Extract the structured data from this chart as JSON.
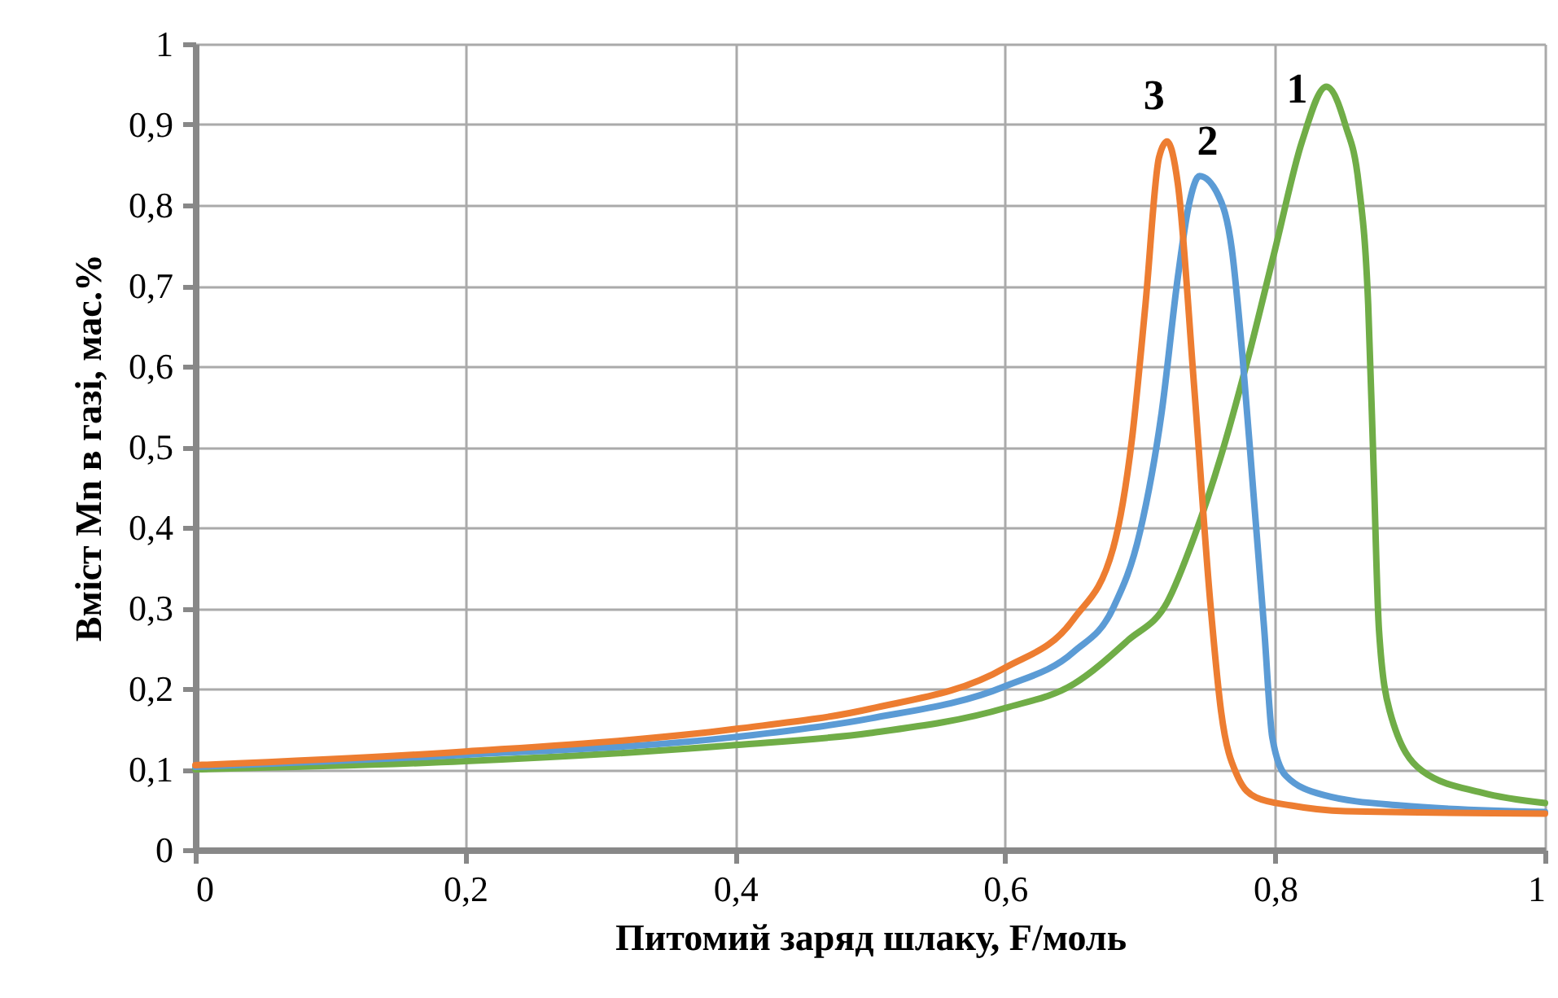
{
  "chart_data": {
    "type": "line",
    "xlabel": "Питомий заряд шлаку, F/моль",
    "ylabel": "Вміст Mn в газі, мас.%",
    "xlim": [
      0,
      1
    ],
    "ylim": [
      0,
      1
    ],
    "xticks": [
      0,
      {
        "value": 0.2,
        "label": "0,2"
      },
      {
        "value": 0.4,
        "label": "0,4"
      },
      {
        "value": 0.6,
        "label": "0,6"
      },
      {
        "value": 0.8,
        "label": "0,8"
      },
      1
    ],
    "yticks": [
      0,
      {
        "value": 0.1,
        "label": "0,1"
      },
      {
        "value": 0.2,
        "label": "0,2"
      },
      {
        "value": 0.3,
        "label": "0,3"
      },
      {
        "value": 0.4,
        "label": "0,4"
      },
      {
        "value": 0.5,
        "label": "0,5"
      },
      {
        "value": 0.6,
        "label": "0,6"
      },
      {
        "value": 0.7,
        "label": "0,7"
      },
      {
        "value": 0.8,
        "label": "0,8"
      },
      {
        "value": 0.9,
        "label": "0,9"
      },
      1
    ],
    "grid": true,
    "legend": false,
    "marker": "none",
    "line_style": "solid",
    "series": [
      {
        "name": "1",
        "color": "#70ad47",
        "x": [
          0,
          0.2,
          0.4,
          0.5,
          0.6,
          0.651,
          0.691,
          0.72,
          0.74,
          0.76,
          0.78,
          0.8,
          0.82,
          0.838,
          0.852,
          0.862,
          0.869,
          0.873,
          0.877,
          0.885,
          0.909,
          0.953,
          1
        ],
        "values": [
          0.1,
          0.11,
          0.13,
          0.145,
          0.176,
          0.206,
          0.26,
          0.307,
          0.388,
          0.489,
          0.61,
          0.745,
          0.879,
          0.947,
          0.9,
          0.826,
          0.677,
          0.475,
          0.273,
          0.172,
          0.098,
          0.071,
          0.058
        ]
      },
      {
        "name": "2",
        "color": "#5b9bd5",
        "x": [
          0,
          0.2,
          0.4,
          0.5,
          0.6,
          0.651,
          0.68,
          0.7,
          0.716,
          0.728,
          0.736,
          0.744,
          0.758,
          0.768,
          0.776,
          0.784,
          0.792,
          0.798,
          0.808,
          0.836,
          0.893,
          1
        ],
        "values": [
          0.103,
          0.118,
          0.14,
          0.163,
          0.203,
          0.246,
          0.3,
          0.395,
          0.543,
          0.711,
          0.799,
          0.836,
          0.812,
          0.745,
          0.61,
          0.442,
          0.273,
          0.139,
          0.092,
          0.068,
          0.055,
          0.047
        ]
      },
      {
        "name": "3",
        "color": "#ed7d31",
        "x": [
          0,
          0.2,
          0.4,
          0.5,
          0.6,
          0.651,
          0.68,
          0.694,
          0.704,
          0.714,
          0.72,
          0.728,
          0.74,
          0.752,
          0.76,
          0.772,
          0.786,
          0.812,
          0.852,
          1
        ],
        "values": [
          0.105,
          0.122,
          0.15,
          0.175,
          0.226,
          0.287,
          0.374,
          0.51,
          0.677,
          0.859,
          0.879,
          0.826,
          0.576,
          0.307,
          0.172,
          0.092,
          0.065,
          0.055,
          0.048,
          0.045
        ]
      }
    ]
  }
}
